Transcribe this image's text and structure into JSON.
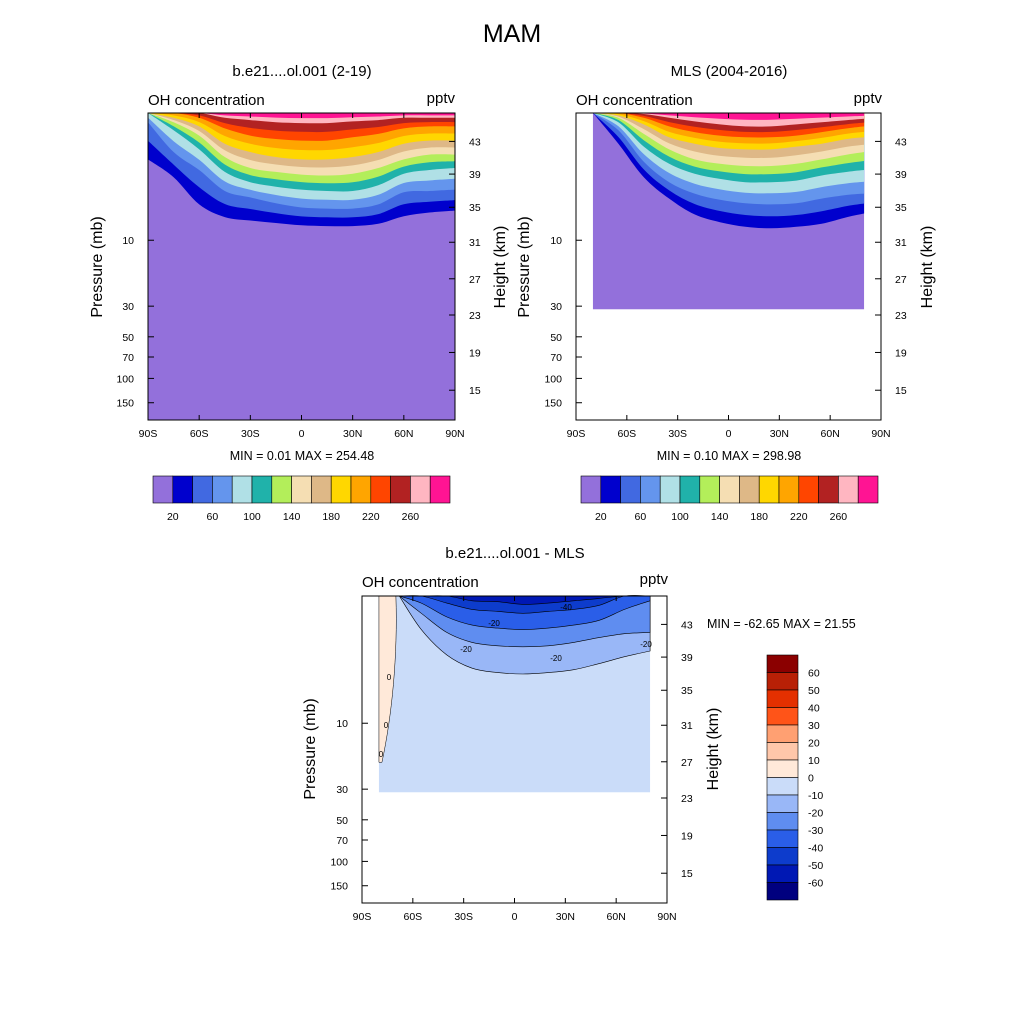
{
  "figure": {
    "title": "MAM"
  },
  "colors": {
    "oh_levels": [
      "#9370db",
      "#0000cd",
      "#4169e1",
      "#6495ed",
      "#b0e0e6",
      "#20b2aa",
      "#b3ee5a",
      "#f5deb3",
      "#deb887",
      "#ffd700",
      "#ffa500",
      "#ff4500",
      "#b22222",
      "#ffb6c1",
      "#ff1493"
    ],
    "diff_levels": [
      "#00007f",
      "#0018b4",
      "#0d3ccc",
      "#2a5ee8",
      "#5f8df0",
      "#99b7f7",
      "#cadcf9",
      "#ffe9d9",
      "#ffc7aa",
      "#ffa072",
      "#ff5418",
      "#e43000",
      "#b82006",
      "#8b0000"
    ]
  },
  "panels": [
    {
      "title": "b.e21....ol.001 (2-19)",
      "left_label": "OH concentration",
      "right_label": "pptv",
      "ylabel_left": "Pressure (mb)",
      "ylabel_right": "Height (km)",
      "min_max": "MIN =   0.01  MAX = 254.48",
      "colorbar_labels": [
        "20",
        "60",
        "100",
        "140",
        "180",
        "220",
        "260"
      ]
    },
    {
      "title": "MLS (2004-2016)",
      "left_label": "OH concentration",
      "right_label": "pptv",
      "ylabel_left": "Pressure (mb)",
      "ylabel_right": "Height (km)",
      "min_max": "MIN =   0.10  MAX = 298.98",
      "colorbar_labels": [
        "20",
        "60",
        "100",
        "140",
        "180",
        "220",
        "260"
      ]
    },
    {
      "title": "b.e21....ol.001 - MLS",
      "left_label": "OH concentration",
      "right_label": "pptv",
      "ylabel_left": "Pressure (mb)",
      "ylabel_right": "Height (km)",
      "min_max": "MIN = -62.65  MAX =  21.55",
      "colorbar_labels": [
        "60",
        "50",
        "40",
        "30",
        "20",
        "10",
        "0",
        "-10",
        "-20",
        "-30",
        "-40",
        "-50",
        "-60"
      ],
      "contour_labels": [
        "0",
        "0",
        "0",
        "-20",
        "-20",
        "-20",
        "-40",
        "-20"
      ]
    }
  ],
  "chart_data": [
    {
      "type": "heatmap",
      "title": "b.e21....ol.001 (2-19)",
      "variable": "OH concentration",
      "units": "pptv",
      "xlabel": "",
      "ylabel": "Pressure (mb)",
      "ylabel_right": "Height (km)",
      "x_ticks": [
        "90S",
        "60S",
        "30S",
        "0",
        "30N",
        "60N",
        "90N"
      ],
      "y_ticks": [
        "10",
        "30",
        "50",
        "70",
        "100",
        "150"
      ],
      "y_right_ticks": [
        "43",
        "39",
        "35",
        "31",
        "27",
        "23",
        "19",
        "15"
      ],
      "xlim": [
        -90,
        90
      ],
      "ylim_mb": [
        200,
        1.2
      ],
      "levels": [
        20,
        40,
        60,
        80,
        100,
        120,
        140,
        160,
        180,
        200,
        220,
        240,
        260,
        280
      ],
      "min": 0.01,
      "max": 254.48,
      "data_extent_lat": [
        -90,
        90
      ],
      "data_extent_mb": [
        200,
        1.2
      ],
      "contours_mb": {
        "lat": [
          -90,
          -75,
          -60,
          -45,
          -30,
          -15,
          0,
          15,
          30,
          45,
          60,
          75,
          90
        ],
        "20": [
          2.6,
          3.5,
          5.5,
          6.8,
          7.2,
          7.5,
          7.8,
          7.9,
          7.9,
          7.6,
          6.7,
          6.3,
          6.1
        ],
        "60": [
          1.4,
          2.3,
          3.1,
          4.4,
          4.9,
          5.4,
          5.8,
          5.9,
          5.9,
          5.5,
          4.5,
          4.4,
          4.3
        ],
        "100": [
          1.2,
          1.6,
          2.2,
          3.2,
          3.8,
          4.1,
          4.3,
          4.4,
          4.4,
          4.0,
          3.3,
          3.1,
          3.0
        ],
        "140": [
          1.2,
          1.4,
          1.75,
          2.5,
          3.0,
          3.2,
          3.35,
          3.4,
          3.3,
          3.0,
          2.6,
          2.4,
          2.4
        ],
        "180": [
          1.2,
          1.3,
          1.5,
          2.0,
          2.3,
          2.5,
          2.6,
          2.6,
          2.5,
          2.3,
          2.0,
          1.9,
          1.9
        ],
        "220": [
          1.2,
          1.2,
          1.3,
          1.55,
          1.75,
          1.85,
          1.9,
          1.9,
          1.8,
          1.7,
          1.55,
          1.5,
          1.5
        ],
        "260": [
          1.2,
          1.2,
          1.2,
          1.3,
          1.35,
          1.4,
          1.42,
          1.42,
          1.38,
          1.35,
          1.3,
          1.3,
          1.3
        ]
      }
    },
    {
      "type": "heatmap",
      "title": "MLS (2004-2016)",
      "variable": "OH concentration",
      "units": "pptv",
      "xlabel": "",
      "ylabel": "Pressure (mb)",
      "ylabel_right": "Height (km)",
      "x_ticks": [
        "90S",
        "60S",
        "30S",
        "0",
        "30N",
        "60N",
        "90N"
      ],
      "y_ticks": [
        "10",
        "30",
        "50",
        "70",
        "100",
        "150"
      ],
      "y_right_ticks": [
        "43",
        "39",
        "35",
        "31",
        "27",
        "23",
        "19",
        "15"
      ],
      "xlim": [
        -90,
        90
      ],
      "ylim_mb": [
        200,
        1.2
      ],
      "levels": [
        20,
        40,
        60,
        80,
        100,
        120,
        140,
        160,
        180,
        200,
        220,
        240,
        260,
        280
      ],
      "min": 0.1,
      "max": 298.98,
      "data_extent_lat": [
        -80,
        80
      ],
      "data_extent_mb": [
        31.6,
        1.2
      ],
      "contours_mb": {
        "lat": [
          -80,
          -65,
          -50,
          -35,
          -20,
          -5,
          10,
          25,
          40,
          55,
          70,
          80
        ],
        "20": [
          1.2,
          2.0,
          3.5,
          5.0,
          6.5,
          7.4,
          8.0,
          8.2,
          8.0,
          7.6,
          6.8,
          6.4
        ],
        "60": [
          1.2,
          1.6,
          2.7,
          3.8,
          4.6,
          5.1,
          5.4,
          5.5,
          5.4,
          5.0,
          4.7,
          4.6
        ],
        "100": [
          1.2,
          1.4,
          2.1,
          2.8,
          3.3,
          3.6,
          3.8,
          3.8,
          3.7,
          3.4,
          3.2,
          3.1
        ],
        "140": [
          1.2,
          1.3,
          1.7,
          2.2,
          2.6,
          2.8,
          2.9,
          2.9,
          2.8,
          2.6,
          2.4,
          2.3
        ],
        "180": [
          1.2,
          1.25,
          1.45,
          1.8,
          2.0,
          2.15,
          2.2,
          2.2,
          2.1,
          2.0,
          1.85,
          1.8
        ],
        "220": [
          1.2,
          1.2,
          1.3,
          1.5,
          1.65,
          1.75,
          1.8,
          1.8,
          1.75,
          1.65,
          1.55,
          1.5
        ],
        "260": [
          1.2,
          1.2,
          1.22,
          1.3,
          1.38,
          1.45,
          1.5,
          1.5,
          1.45,
          1.4,
          1.35,
          1.32
        ]
      }
    },
    {
      "type": "heatmap",
      "title": "b.e21....ol.001 - MLS",
      "variable": "OH concentration",
      "units": "pptv",
      "xlabel": "",
      "ylabel": "Pressure (mb)",
      "ylabel_right": "Height (km)",
      "x_ticks": [
        "90S",
        "60S",
        "30S",
        "0",
        "30N",
        "60N",
        "90N"
      ],
      "y_ticks": [
        "10",
        "30",
        "50",
        "70",
        "100",
        "150"
      ],
      "y_right_ticks": [
        "43",
        "39",
        "35",
        "31",
        "27",
        "23",
        "19",
        "15"
      ],
      "xlim": [
        -90,
        90
      ],
      "ylim_mb": [
        200,
        1.2
      ],
      "levels": [
        -60,
        -50,
        -40,
        -30,
        -20,
        -10,
        0,
        10,
        20,
        30,
        40,
        50,
        60
      ],
      "min": -62.65,
      "max": 21.55,
      "data_extent_lat": [
        -80,
        80
      ],
      "data_extent_mb": [
        31.6,
        1.2
      ],
      "contours_mb": {
        "lat": [
          -68,
          -55,
          -40,
          -25,
          -10,
          5,
          20,
          35,
          50,
          65,
          80
        ],
        "-10": [
          1.2,
          2.1,
          3.2,
          4.0,
          4.3,
          4.4,
          4.3,
          4.1,
          3.7,
          3.3,
          3.0
        ],
        "-20": [
          1.2,
          1.6,
          2.2,
          2.6,
          2.75,
          2.8,
          2.75,
          2.6,
          2.4,
          2.25,
          2.2
        ],
        "-30": [
          1.2,
          1.35,
          1.7,
          1.95,
          2.05,
          2.1,
          2.05,
          1.95,
          1.8,
          1.5,
          1.3
        ],
        "-40": [
          1.2,
          1.2,
          1.35,
          1.5,
          1.55,
          1.6,
          1.55,
          1.5,
          1.4,
          1.2,
          1.2
        ],
        "-50": [
          1.2,
          1.2,
          1.2,
          1.3,
          1.32,
          1.38,
          1.35,
          1.3,
          1.25,
          1.2,
          1.2
        ]
      },
      "positive_band_lat": [
        -80,
        -70
      ]
    }
  ]
}
